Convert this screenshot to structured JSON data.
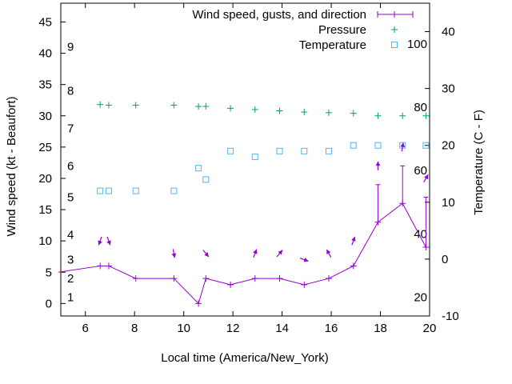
{
  "chart_data": {
    "type": "line",
    "xlabel": "Local time (America/New_York)",
    "ylabel": "Wind speed (kt - Beaufort)",
    "y2label": "Temperature (C - F)",
    "xlim": [
      5,
      20
    ],
    "ylim": [
      -2,
      48
    ],
    "y2lim": [
      -10,
      45
    ],
    "x_ticks": [
      6,
      8,
      10,
      12,
      14,
      16,
      18,
      20
    ],
    "y_ticks": [
      0,
      5,
      10,
      15,
      20,
      25,
      30,
      35,
      40,
      45
    ],
    "y2_ticks": [
      -10,
      0,
      10,
      20,
      30,
      40
    ],
    "beaufort_scale": [
      {
        "label": "1",
        "y": 1
      },
      {
        "label": "2",
        "y": 4
      },
      {
        "label": "3",
        "y": 7
      },
      {
        "label": "4",
        "y": 11
      },
      {
        "label": "5",
        "y": 17
      },
      {
        "label": "6",
        "y": 22
      },
      {
        "label": "7",
        "y": 28
      },
      {
        "label": "8",
        "y": 34
      },
      {
        "label": "9",
        "y": 41
      }
    ],
    "fahrenheit_labels": [
      {
        "label": "20",
        "c": -6.7
      },
      {
        "label": "40",
        "c": 4.4
      },
      {
        "label": "60",
        "c": 15.6
      },
      {
        "label": "80",
        "c": 26.7
      },
      {
        "label": "100",
        "c": 37.8
      }
    ],
    "legend_position": "top-right",
    "grid": false,
    "series": [
      {
        "name": "Wind speed, gusts, and direction",
        "color": "#9400d3",
        "points": [
          {
            "x": 4.9,
            "y": 5,
            "gust": null,
            "dir": null
          },
          {
            "x": 6.6,
            "y": 6,
            "gust": null,
            "dir": 20
          },
          {
            "x": 6.95,
            "y": 6,
            "gust": null,
            "dir": 340
          },
          {
            "x": 8.05,
            "y": 4,
            "gust": null,
            "dir": null
          },
          {
            "x": 9.6,
            "y": 4,
            "gust": null,
            "dir": 350
          },
          {
            "x": 10.6,
            "y": 0,
            "gust": null,
            "dir": null
          },
          {
            "x": 10.9,
            "y": 4,
            "gust": null,
            "dir": 320
          },
          {
            "x": 11.9,
            "y": 3,
            "gust": null,
            "dir": null
          },
          {
            "x": 12.9,
            "y": 4,
            "gust": null,
            "dir": 200
          },
          {
            "x": 13.9,
            "y": 4,
            "gust": null,
            "dir": 220
          },
          {
            "x": 14.9,
            "y": 3,
            "gust": null,
            "dir": 290
          },
          {
            "x": 15.9,
            "y": 4,
            "gust": null,
            "dir": 150
          },
          {
            "x": 16.9,
            "y": 6,
            "gust": null,
            "dir": 200
          },
          {
            "x": 17.9,
            "y": 13,
            "gust": 19,
            "dir": 180
          },
          {
            "x": 18.9,
            "y": 16,
            "gust": 22,
            "dir": 190
          },
          {
            "x": 19.85,
            "y": 9,
            "gust": 17,
            "dir": 210
          }
        ]
      },
      {
        "name": "Pressure",
        "color": "#009e73",
        "marker": "+",
        "points": [
          {
            "x": 6.6,
            "y": 31.8
          },
          {
            "x": 6.95,
            "y": 31.7
          },
          {
            "x": 8.05,
            "y": 31.7
          },
          {
            "x": 9.6,
            "y": 31.7
          },
          {
            "x": 10.6,
            "y": 31.5
          },
          {
            "x": 10.9,
            "y": 31.5
          },
          {
            "x": 11.9,
            "y": 31.2
          },
          {
            "x": 12.9,
            "y": 31.0
          },
          {
            "x": 13.9,
            "y": 30.8
          },
          {
            "x": 14.9,
            "y": 30.6
          },
          {
            "x": 15.9,
            "y": 30.5
          },
          {
            "x": 16.9,
            "y": 30.4
          },
          {
            "x": 17.9,
            "y": 30.0
          },
          {
            "x": 18.9,
            "y": 30.0
          },
          {
            "x": 19.85,
            "y": 30.0
          }
        ]
      },
      {
        "name": "Temperature",
        "color": "#56b4e9",
        "marker": "square",
        "points": [
          {
            "x": 6.6,
            "y": 12
          },
          {
            "x": 6.95,
            "y": 12
          },
          {
            "x": 8.05,
            "y": 12
          },
          {
            "x": 9.6,
            "y": 12
          },
          {
            "x": 10.6,
            "y": 16
          },
          {
            "x": 10.9,
            "y": 14
          },
          {
            "x": 11.9,
            "y": 19
          },
          {
            "x": 12.9,
            "y": 18
          },
          {
            "x": 13.9,
            "y": 19
          },
          {
            "x": 14.9,
            "y": 19
          },
          {
            "x": 15.9,
            "y": 19
          },
          {
            "x": 16.9,
            "y": 20
          },
          {
            "x": 17.9,
            "y": 20
          },
          {
            "x": 18.9,
            "y": 20
          },
          {
            "x": 19.85,
            "y": 20
          }
        ]
      }
    ]
  }
}
